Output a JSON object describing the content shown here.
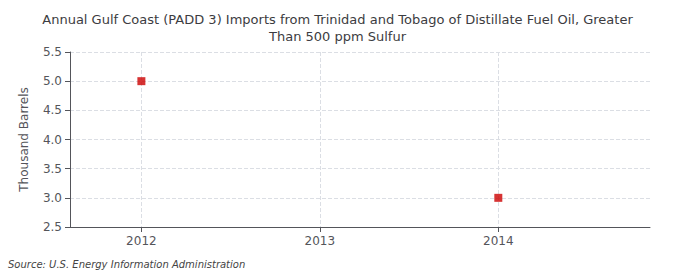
{
  "chart_data": {
    "type": "scatter",
    "title": "Annual Gulf Coast (PADD 3) Imports from Trinidad and Tobago of Distillate Fuel Oil, Greater\nThan 500 ppm Sulfur",
    "ylabel": "Thousand Barrels",
    "annotation": "Source: U.S. Energy Information Administration",
    "x": [
      2012,
      2014
    ],
    "values": [
      5.0,
      3.0
    ],
    "color": "#cc0000",
    "marker": "square",
    "xlim": [
      2011.6,
      2014.85
    ],
    "xticks": [
      2012,
      2013,
      2014
    ],
    "ylim": [
      2.5,
      5.5
    ],
    "yticks": [
      2.5,
      {
        "value": 3.0,
        "label": "3.0"
      },
      3.5,
      {
        "value": 4.0,
        "label": "4.0"
      },
      4.5,
      {
        "value": 5.0,
        "label": "5.0"
      },
      5.5
    ],
    "grid": true
  }
}
